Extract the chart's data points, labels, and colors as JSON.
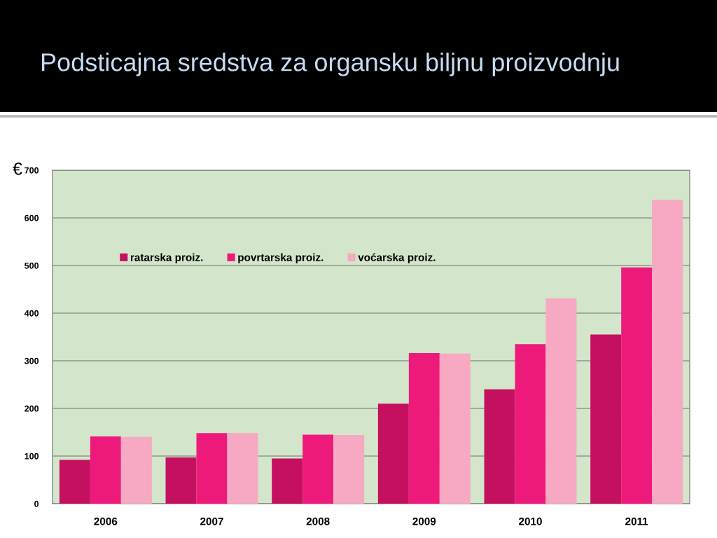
{
  "chart_data": {
    "type": "bar",
    "title": "Podsticajna sredstva za organsku biljnu proizvodnju",
    "ylabel": "€",
    "categories": [
      "2006",
      "2007",
      "2008",
      "2009",
      "2010",
      "2011"
    ],
    "series": [
      {
        "name": "ratarska proiz.",
        "color": "#c4105f",
        "values": [
          92,
          97,
          95,
          210,
          240,
          355
        ]
      },
      {
        "name": "povrtarska proiz.",
        "color": "#ee1a7b",
        "values": [
          141,
          148,
          145,
          316,
          335,
          496
        ]
      },
      {
        "name": "voćarska proiz.",
        "color": "#f7a8c2",
        "values": [
          140,
          148,
          144,
          315,
          431,
          638
        ]
      }
    ],
    "ylim": [
      0,
      700
    ],
    "yticks": [
      0,
      100,
      200,
      300,
      400,
      500,
      600,
      700
    ],
    "grid": "y",
    "legend": "top left"
  }
}
